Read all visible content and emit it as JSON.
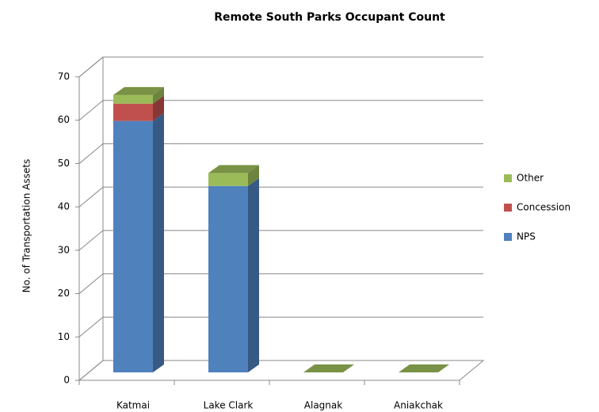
{
  "chart_data": {
    "type": "bar",
    "stacked": true,
    "title": "Remote South Parks Occupant Count",
    "y_label": "No. of Transportation Assets",
    "categories": [
      "Katmai",
      "Lake Clark",
      "Alagnak",
      "Aniakchak"
    ],
    "series": [
      {
        "name": "NPS",
        "color": "#4f81bd",
        "values": [
          58,
          43,
          0,
          0
        ]
      },
      {
        "name": "Concession",
        "color": "#c0504d",
        "values": [
          4,
          0,
          0,
          0
        ]
      },
      {
        "name": "Other",
        "color": "#9bbb59",
        "values": [
          2,
          3,
          0,
          0
        ]
      }
    ],
    "ylim": [
      0,
      70
    ],
    "yticks": [
      0,
      10,
      20,
      30,
      40,
      50,
      60,
      70
    ],
    "grid": true,
    "legend": "right"
  }
}
